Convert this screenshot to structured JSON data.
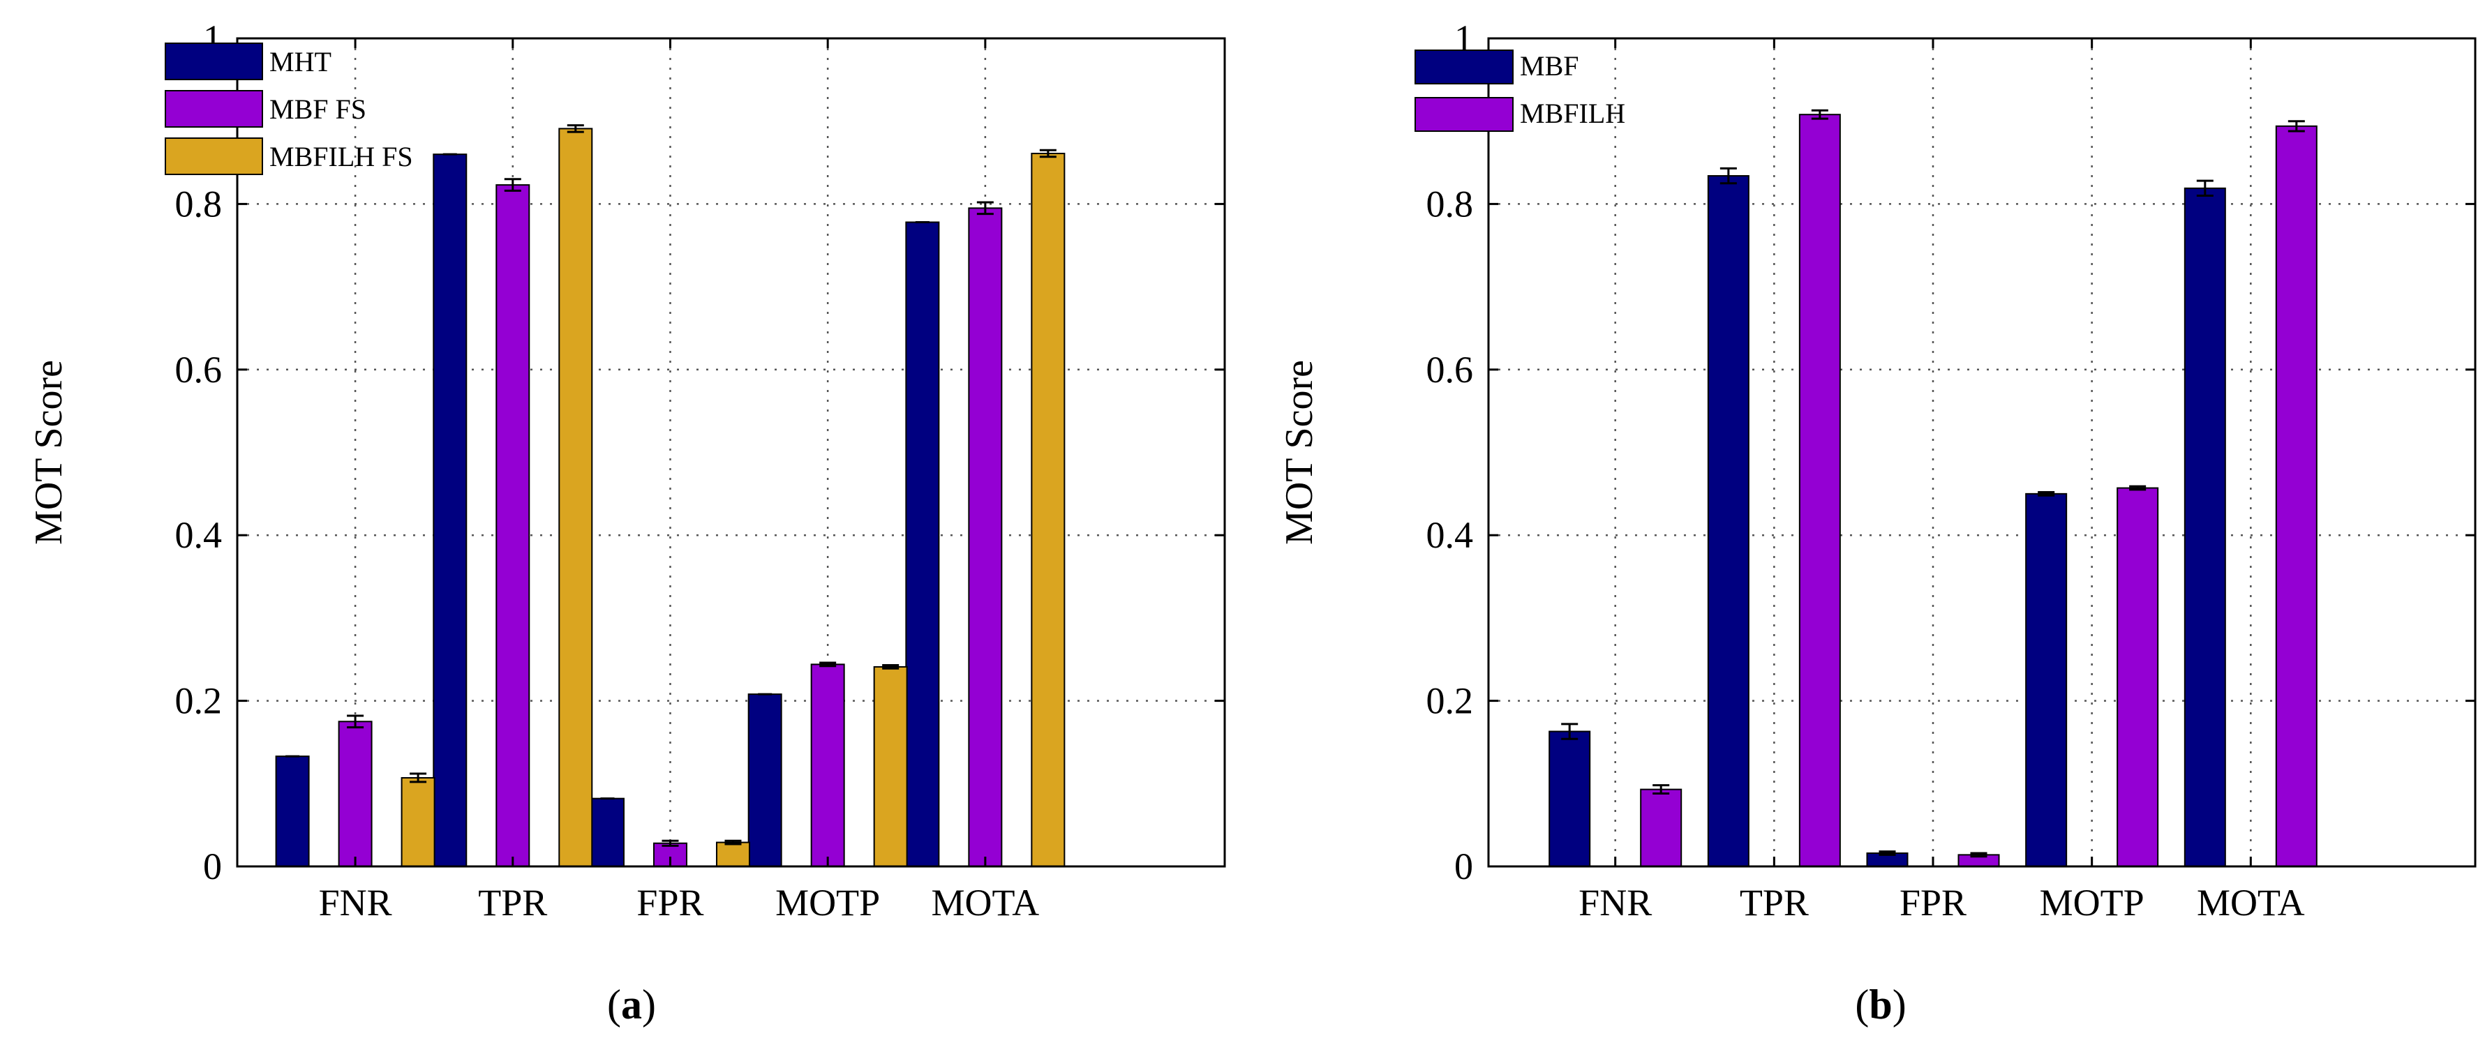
{
  "chart_data": [
    {
      "type": "bar",
      "panel": "(a)",
      "caption_letter": "a",
      "title": "",
      "xlabel": "",
      "ylabel": "MOT Score",
      "ylim": [
        0,
        1
      ],
      "yticks": [
        "0",
        "0.2",
        "0.4",
        "0.6",
        "0.8",
        "1"
      ],
      "grid": true,
      "legend_position": "top-left",
      "categories": [
        "FNR",
        "TPR",
        "FPR",
        "MOTP",
        "MOTA"
      ],
      "series": [
        {
          "name": "MHT",
          "color": "#000080",
          "values": [
            0.133,
            0.86,
            0.082,
            0.208,
            0.778
          ],
          "errors": [
            0.0,
            0.0,
            0.0,
            0.0,
            0.0
          ]
        },
        {
          "name": "MBF FS",
          "color": "#9400D3",
          "values": [
            0.175,
            0.823,
            0.028,
            0.244,
            0.795
          ],
          "errors": [
            0.007,
            0.007,
            0.003,
            0.002,
            0.007
          ]
        },
        {
          "name": "MBFILH FS",
          "color": "#DAA520",
          "values": [
            0.107,
            0.891,
            0.029,
            0.241,
            0.861
          ],
          "errors": [
            0.005,
            0.004,
            0.002,
            0.002,
            0.004
          ]
        }
      ]
    },
    {
      "type": "bar",
      "panel": "(b)",
      "caption_letter": "b",
      "title": "",
      "xlabel": "",
      "ylabel": "MOT Score",
      "ylim": [
        0,
        1
      ],
      "yticks": [
        "0",
        "0.2",
        "0.4",
        "0.6",
        "0.8",
        "1"
      ],
      "grid": true,
      "legend_position": "top-left",
      "categories": [
        "FNR",
        "TPR",
        "FPR",
        "MOTP",
        "MOTA"
      ],
      "series": [
        {
          "name": "MBF",
          "color": "#000080",
          "values": [
            0.163,
            0.834,
            0.016,
            0.45,
            0.819
          ],
          "errors": [
            0.009,
            0.009,
            0.002,
            0.002,
            0.009
          ]
        },
        {
          "name": "MBFILH",
          "color": "#9400D3",
          "values": [
            0.093,
            0.908,
            0.014,
            0.457,
            0.894
          ],
          "errors": [
            0.005,
            0.005,
            0.002,
            0.002,
            0.006
          ]
        }
      ]
    }
  ]
}
